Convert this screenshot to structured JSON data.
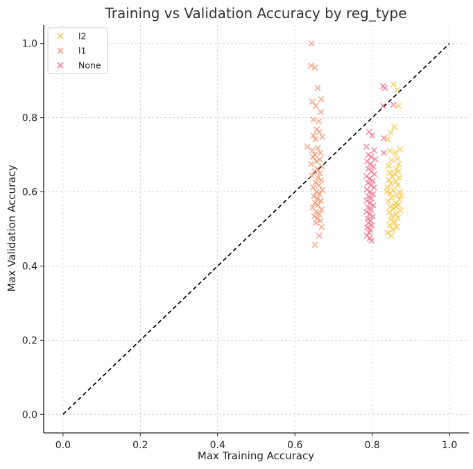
{
  "chart_data": {
    "type": "scatter",
    "title": "Training vs Validation Accuracy by reg_type",
    "xlabel": "Max Training Accuracy",
    "ylabel": "Max Validation Accuracy",
    "xlim": [
      -0.05,
      1.05
    ],
    "ylim": [
      -0.05,
      1.05
    ],
    "xticks": [
      "0.0",
      "0.2",
      "0.4",
      "0.6",
      "0.8",
      "1.0"
    ],
    "yticks": [
      "0.0",
      "0.2",
      "0.4",
      "0.6",
      "0.8",
      "1.0"
    ],
    "grid": true,
    "legend_position": "top-left",
    "reference_line": {
      "style": "dashed",
      "color": "#000000",
      "from": [
        0,
        0
      ],
      "to": [
        1,
        1
      ]
    },
    "series": [
      {
        "name": "l2",
        "color": "#fbc02d",
        "marker": "x",
        "points": [
          [
            0.855,
            0.89
          ],
          [
            0.865,
            0.875
          ],
          [
            0.868,
            0.832
          ],
          [
            0.857,
            0.775
          ],
          [
            0.848,
            0.76
          ],
          [
            0.84,
            0.742
          ],
          [
            0.872,
            0.715
          ],
          [
            0.846,
            0.71
          ],
          [
            0.86,
            0.705
          ],
          [
            0.865,
            0.69
          ],
          [
            0.85,
            0.685
          ],
          [
            0.869,
            0.675
          ],
          [
            0.842,
            0.67
          ],
          [
            0.862,
            0.662
          ],
          [
            0.867,
            0.655
          ],
          [
            0.845,
            0.652
          ],
          [
            0.858,
            0.648
          ],
          [
            0.852,
            0.642
          ],
          [
            0.87,
            0.638
          ],
          [
            0.843,
            0.632
          ],
          [
            0.861,
            0.628
          ],
          [
            0.848,
            0.622
          ],
          [
            0.866,
            0.618
          ],
          [
            0.84,
            0.612
          ],
          [
            0.855,
            0.605
          ],
          [
            0.872,
            0.6
          ],
          [
            0.846,
            0.596
          ],
          [
            0.863,
            0.59
          ],
          [
            0.85,
            0.585
          ],
          [
            0.871,
            0.58
          ],
          [
            0.842,
            0.575
          ],
          [
            0.86,
            0.57
          ],
          [
            0.868,
            0.565
          ],
          [
            0.847,
            0.56
          ],
          [
            0.856,
            0.555
          ],
          [
            0.873,
            0.55
          ],
          [
            0.844,
            0.545
          ],
          [
            0.862,
            0.54
          ],
          [
            0.851,
            0.535
          ],
          [
            0.866,
            0.53
          ],
          [
            0.848,
            0.525
          ],
          [
            0.858,
            0.518
          ],
          [
            0.845,
            0.51
          ],
          [
            0.864,
            0.505
          ],
          [
            0.853,
            0.498
          ],
          [
            0.84,
            0.49
          ],
          [
            0.849,
            0.482
          ],
          [
            0.862,
            0.56
          ],
          [
            0.875,
            0.59
          ],
          [
            0.838,
            0.6
          ]
        ]
      },
      {
        "name": "l1",
        "color": "#ef8a62",
        "marker": "x",
        "points": [
          [
            0.643,
            1.0
          ],
          [
            0.641,
            0.94
          ],
          [
            0.652,
            0.935
          ],
          [
            0.659,
            0.88
          ],
          [
            0.668,
            0.85
          ],
          [
            0.645,
            0.843
          ],
          [
            0.654,
            0.832
          ],
          [
            0.667,
            0.815
          ],
          [
            0.648,
            0.795
          ],
          [
            0.662,
            0.79
          ],
          [
            0.656,
            0.768
          ],
          [
            0.663,
            0.762
          ],
          [
            0.648,
            0.752
          ],
          [
            0.671,
            0.748
          ],
          [
            0.653,
            0.742
          ],
          [
            0.632,
            0.722
          ],
          [
            0.659,
            0.718
          ],
          [
            0.645,
            0.712
          ],
          [
            0.666,
            0.705
          ],
          [
            0.652,
            0.7
          ],
          [
            0.647,
            0.694
          ],
          [
            0.664,
            0.688
          ],
          [
            0.655,
            0.682
          ],
          [
            0.642,
            0.675
          ],
          [
            0.67,
            0.668
          ],
          [
            0.658,
            0.662
          ],
          [
            0.651,
            0.655
          ],
          [
            0.665,
            0.65
          ],
          [
            0.644,
            0.644
          ],
          [
            0.659,
            0.638
          ],
          [
            0.668,
            0.632
          ],
          [
            0.653,
            0.625
          ],
          [
            0.662,
            0.618
          ],
          [
            0.647,
            0.612
          ],
          [
            0.671,
            0.605
          ],
          [
            0.656,
            0.6
          ],
          [
            0.664,
            0.594
          ],
          [
            0.649,
            0.588
          ],
          [
            0.658,
            0.582
          ],
          [
            0.667,
            0.576
          ],
          [
            0.652,
            0.57
          ],
          [
            0.66,
            0.564
          ],
          [
            0.646,
            0.558
          ],
          [
            0.669,
            0.552
          ],
          [
            0.655,
            0.546
          ],
          [
            0.663,
            0.54
          ],
          [
            0.65,
            0.534
          ],
          [
            0.658,
            0.528
          ],
          [
            0.666,
            0.522
          ],
          [
            0.654,
            0.516
          ],
          [
            0.669,
            0.505
          ],
          [
            0.663,
            0.482
          ],
          [
            0.652,
            0.457
          ]
        ]
      },
      {
        "name": "None",
        "color": "#f06282",
        "marker": "x",
        "points": [
          [
            0.828,
            0.885
          ],
          [
            0.833,
            0.88
          ],
          [
            0.855,
            0.835
          ],
          [
            0.828,
            0.832
          ],
          [
            0.792,
            0.762
          ],
          [
            0.8,
            0.752
          ],
          [
            0.83,
            0.745
          ],
          [
            0.785,
            0.722
          ],
          [
            0.805,
            0.712
          ],
          [
            0.83,
            0.705
          ],
          [
            0.79,
            0.7
          ],
          [
            0.797,
            0.695
          ],
          [
            0.808,
            0.688
          ],
          [
            0.787,
            0.682
          ],
          [
            0.795,
            0.675
          ],
          [
            0.803,
            0.668
          ],
          [
            0.79,
            0.662
          ],
          [
            0.798,
            0.655
          ],
          [
            0.806,
            0.648
          ],
          [
            0.785,
            0.642
          ],
          [
            0.793,
            0.636
          ],
          [
            0.801,
            0.63
          ],
          [
            0.789,
            0.624
          ],
          [
            0.797,
            0.618
          ],
          [
            0.805,
            0.612
          ],
          [
            0.786,
            0.606
          ],
          [
            0.794,
            0.6
          ],
          [
            0.802,
            0.594
          ],
          [
            0.79,
            0.588
          ],
          [
            0.798,
            0.582
          ],
          [
            0.786,
            0.576
          ],
          [
            0.794,
            0.57
          ],
          [
            0.803,
            0.564
          ],
          [
            0.789,
            0.558
          ],
          [
            0.797,
            0.552
          ],
          [
            0.785,
            0.546
          ],
          [
            0.793,
            0.54
          ],
          [
            0.801,
            0.534
          ],
          [
            0.788,
            0.528
          ],
          [
            0.796,
            0.522
          ],
          [
            0.79,
            0.516
          ],
          [
            0.799,
            0.51
          ],
          [
            0.787,
            0.504
          ],
          [
            0.795,
            0.498
          ],
          [
            0.792,
            0.49
          ],
          [
            0.786,
            0.482
          ],
          [
            0.794,
            0.475
          ],
          [
            0.798,
            0.468
          ]
        ]
      }
    ]
  }
}
